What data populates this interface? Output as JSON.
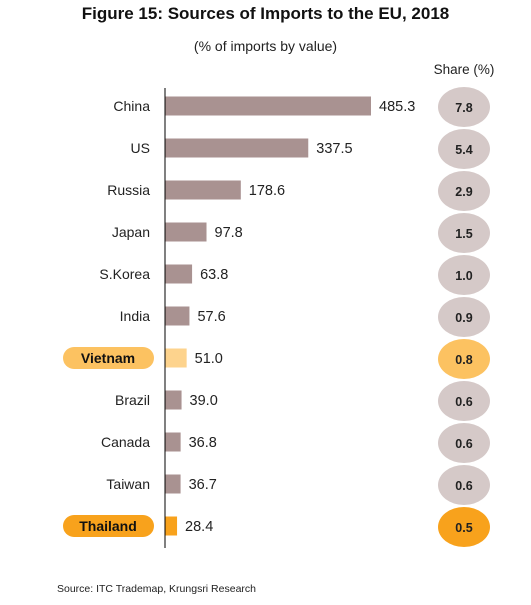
{
  "chart_data": {
    "type": "bar",
    "orientation": "horizontal",
    "title": "Figure 15: Sources of Imports to the EU, 2018",
    "subtitle": "(% of imports by value)",
    "share_header": "Share (%)",
    "source": "Source: ITC Trademap, Krungsri Research",
    "categories": [
      "China",
      "US",
      "Russia",
      "Japan",
      "S.Korea",
      "India",
      "Vietnam",
      "Brazil",
      "Canada",
      "Taiwan",
      "Thailand"
    ],
    "values": [
      485.3,
      337.5,
      178.6,
      97.8,
      63.8,
      57.6,
      51.0,
      39.0,
      36.8,
      36.7,
      28.4
    ],
    "value_labels": [
      "485.3",
      "337.5",
      "178.6",
      "97.8",
      "63.8",
      "57.6",
      "51.0",
      "39.0",
      "36.8",
      "36.7",
      "28.4"
    ],
    "shares": [
      "7.8",
      "5.4",
      "2.9",
      "1.5",
      "1.0",
      "0.9",
      "0.8",
      "0.6",
      "0.6",
      "0.6",
      "0.5"
    ],
    "highlighted": [
      "Vietnam",
      "Thailand"
    ],
    "xlim": [
      0,
      485.3
    ],
    "colors": {
      "bar": "#a99291",
      "share_circle": "#d5c9c8",
      "vietnam_bar": "#fdd38d",
      "vietnam_label_bg": "#fcc261",
      "vietnam_circle": "#fcc261",
      "thailand_bar": "#f8a21c",
      "thailand_label_bg": "#f8a21c",
      "thailand_circle": "#f8a21c",
      "axis": "#000000"
    }
  }
}
